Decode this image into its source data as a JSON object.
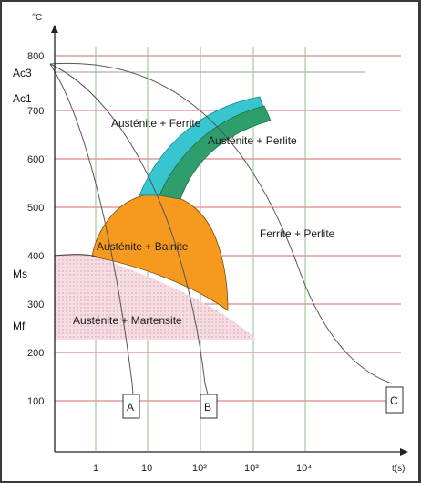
{
  "diagram": {
    "axes": {
      "y_unit": "°C",
      "x_unit": "t(s)",
      "y_ticks": [
        "100",
        "200",
        "300",
        "400",
        "500",
        "600",
        "700",
        "800"
      ],
      "x_ticks": [
        "1",
        "10",
        "10²",
        "10³",
        "10⁴"
      ]
    },
    "side_labels": {
      "ac3": "Ac3",
      "ac1": "Ac1",
      "ms": "Ms",
      "mf": "Mf"
    },
    "regions": {
      "austenite_ferrite": "Austénite + Ferrite",
      "austenite_perlite": "Austénite + Perlite",
      "austenite_bainite": "Austénite + Bainite",
      "austenite_martensite": "Austénite + Martensite",
      "ferrite_perlite": "Ferrite + Perlite"
    },
    "curves": [
      "A",
      "B",
      "C"
    ],
    "colors": {
      "ferrite_band": "#37c5cf",
      "perlite_band": "#2e9e6c",
      "bainite_region": "#f59a1e",
      "martensite_region": "#f4d4dc",
      "grid_lines": "#d9888e"
    }
  }
}
